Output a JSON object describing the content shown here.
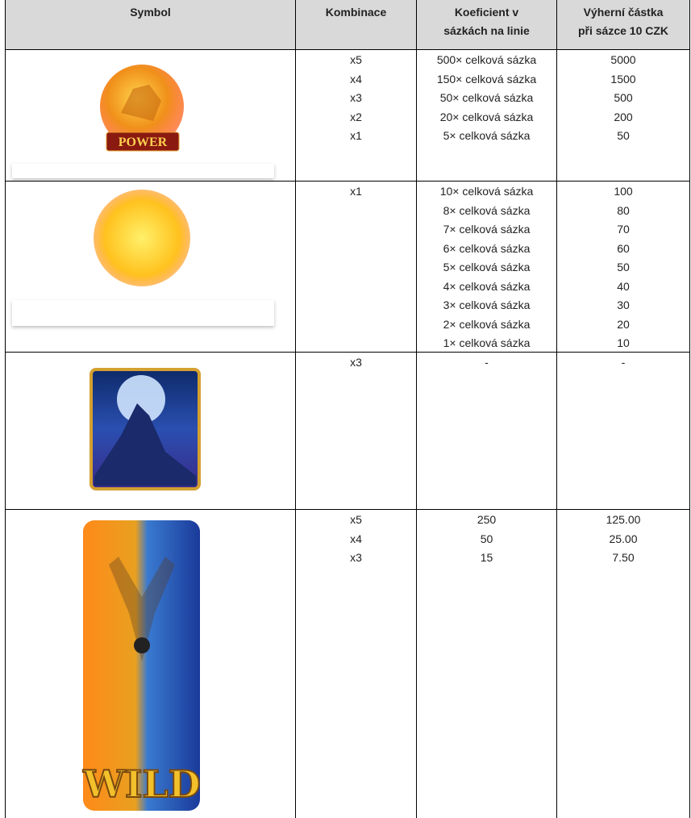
{
  "header": [
    "Symbol",
    "Kombinace",
    [
      "Koeficient v",
      "sázkách na linie"
    ],
    [
      "Výherní částka",
      "při sázce 10 CZK"
    ]
  ],
  "symbols": [
    "POWER",
    "WILD"
  ],
  "rows": [
    {
      "combos": [
        "x5",
        "x4",
        "x3",
        "x2",
        "x1"
      ],
      "coefficients": [
        "500× celková sázka",
        "150× celková sázka",
        "50× celková sázka",
        "20× celková sázka",
        "5× celková sázka"
      ],
      "payouts": [
        "5000",
        "1500",
        "500",
        "200",
        "50"
      ]
    },
    {
      "combos": [
        "x1"
      ],
      "coefficients": [
        "10× celková sázka",
        "8× celková sázka",
        "7× celková sázka",
        "6× celková sázka",
        "5× celková sázka",
        "4× celková sázka",
        "3× celková sázka",
        "2× celková sázka",
        "1× celková sázka"
      ],
      "payouts": [
        "100",
        "80",
        "70",
        "60",
        "50",
        "40",
        "30",
        "20",
        "10"
      ]
    },
    {
      "combos": [
        "x3"
      ],
      "coefficients": [
        "-"
      ],
      "payouts": [
        "-"
      ]
    },
    {
      "combos": [
        "x5",
        "x4",
        "x3"
      ],
      "coefficients": [
        "250",
        "50",
        "15"
      ],
      "payouts": [
        "125.00",
        "25.00",
        "7.50"
      ]
    }
  ]
}
